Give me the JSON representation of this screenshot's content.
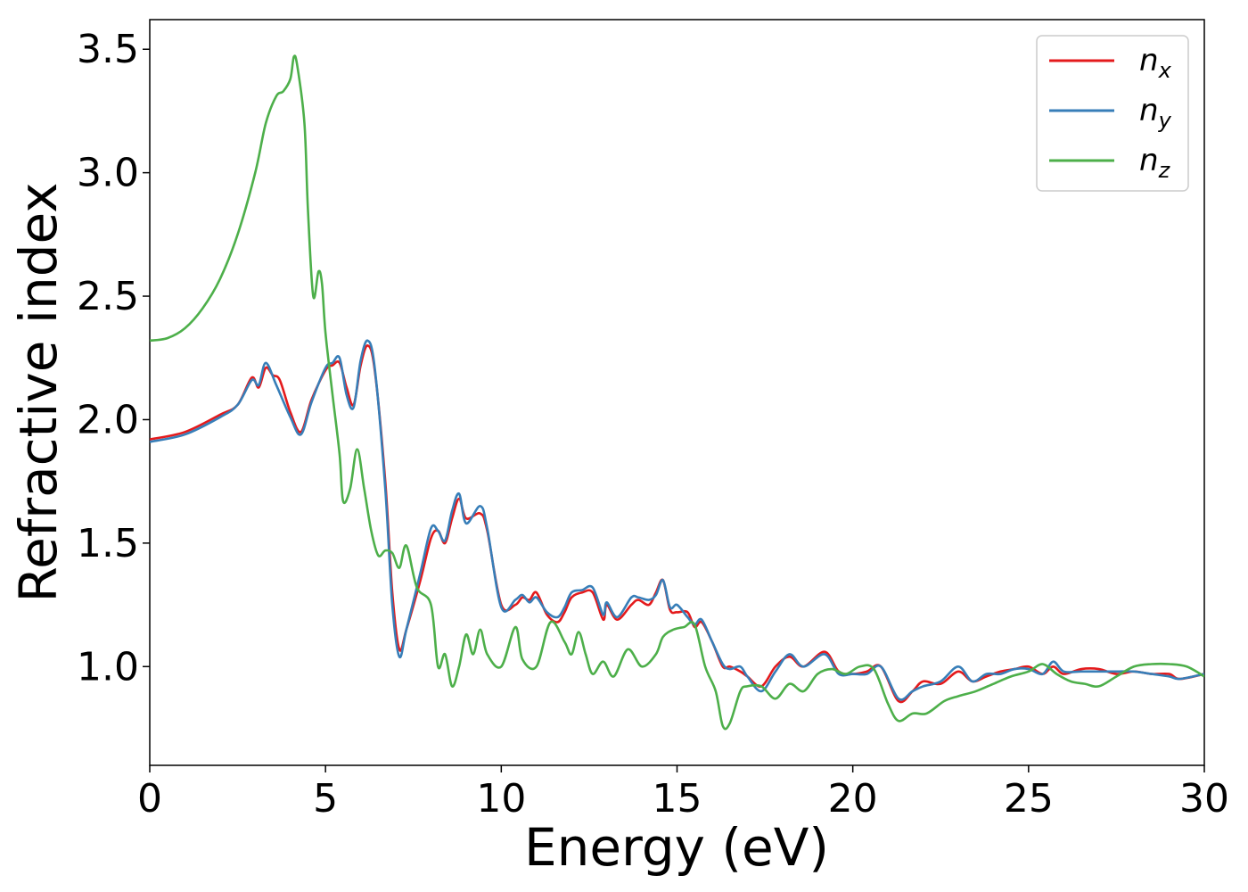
{
  "chart_data": {
    "type": "line",
    "title": "",
    "xlabel": "Energy (eV)",
    "ylabel": "Refractive index",
    "xlim": [
      0,
      30
    ],
    "ylim": [
      0.6,
      3.62
    ],
    "xticks": [
      0,
      5,
      10,
      15,
      20,
      25,
      30
    ],
    "xtick_labels": [
      "0",
      "5",
      "10",
      "15",
      "20",
      "25",
      "30"
    ],
    "yticks": [
      1.0,
      1.5,
      2.0,
      2.5,
      3.0,
      3.5
    ],
    "ytick_labels": [
      "1.0",
      "1.5",
      "2.0",
      "2.5",
      "3.0",
      "3.5"
    ],
    "grid": false,
    "legend_position": "top-right",
    "series": [
      {
        "name": "n",
        "subscript": "x",
        "color": "#e41a1c",
        "points": [
          [
            0,
            1.92
          ],
          [
            1,
            1.95
          ],
          [
            2,
            2.02
          ],
          [
            2.5,
            2.06
          ],
          [
            2.9,
            2.17
          ],
          [
            3.1,
            2.13
          ],
          [
            3.3,
            2.21
          ],
          [
            3.5,
            2.18
          ],
          [
            3.7,
            2.16
          ],
          [
            4.0,
            2.03
          ],
          [
            4.3,
            1.95
          ],
          [
            4.6,
            2.08
          ],
          [
            5.0,
            2.2
          ],
          [
            5.2,
            2.22
          ],
          [
            5.4,
            2.23
          ],
          [
            5.6,
            2.13
          ],
          [
            5.8,
            2.06
          ],
          [
            6.0,
            2.22
          ],
          [
            6.2,
            2.3
          ],
          [
            6.4,
            2.2
          ],
          [
            6.7,
            1.75
          ],
          [
            6.9,
            1.3
          ],
          [
            7.1,
            1.07
          ],
          [
            7.3,
            1.15
          ],
          [
            7.7,
            1.35
          ],
          [
            8.0,
            1.52
          ],
          [
            8.2,
            1.55
          ],
          [
            8.4,
            1.5
          ],
          [
            8.6,
            1.6
          ],
          [
            8.8,
            1.68
          ],
          [
            9.0,
            1.6
          ],
          [
            9.4,
            1.62
          ],
          [
            9.6,
            1.55
          ],
          [
            10.0,
            1.25
          ],
          [
            10.4,
            1.25
          ],
          [
            10.6,
            1.28
          ],
          [
            10.8,
            1.27
          ],
          [
            11.0,
            1.3
          ],
          [
            11.3,
            1.21
          ],
          [
            11.6,
            1.18
          ],
          [
            11.8,
            1.22
          ],
          [
            12.0,
            1.28
          ],
          [
            12.3,
            1.3
          ],
          [
            12.6,
            1.3
          ],
          [
            12.9,
            1.19
          ],
          [
            13.0,
            1.25
          ],
          [
            13.3,
            1.19
          ],
          [
            13.7,
            1.25
          ],
          [
            13.9,
            1.27
          ],
          [
            14.2,
            1.25
          ],
          [
            14.4,
            1.3
          ],
          [
            14.6,
            1.35
          ],
          [
            14.8,
            1.23
          ],
          [
            15.0,
            1.22
          ],
          [
            15.3,
            1.22
          ],
          [
            15.5,
            1.16
          ],
          [
            15.7,
            1.18
          ],
          [
            16.0,
            1.1
          ],
          [
            16.3,
            1.0
          ],
          [
            16.5,
            1.0
          ],
          [
            16.8,
            0.98
          ],
          [
            17.0,
            0.96
          ],
          [
            17.4,
            0.92
          ],
          [
            17.8,
            1.0
          ],
          [
            18.2,
            1.04
          ],
          [
            18.6,
            1.0
          ],
          [
            19.2,
            1.06
          ],
          [
            19.6,
            0.98
          ],
          [
            20.0,
            0.97
          ],
          [
            20.4,
            0.98
          ],
          [
            20.8,
            1.0
          ],
          [
            21.3,
            0.86
          ],
          [
            21.7,
            0.9
          ],
          [
            22.0,
            0.94
          ],
          [
            22.5,
            0.93
          ],
          [
            23.0,
            0.98
          ],
          [
            23.4,
            0.94
          ],
          [
            23.8,
            0.96
          ],
          [
            24.2,
            0.98
          ],
          [
            24.6,
            0.99
          ],
          [
            25.0,
            1.0
          ],
          [
            25.4,
            0.97
          ],
          [
            25.7,
            1.0
          ],
          [
            26.0,
            0.97
          ],
          [
            26.5,
            0.99
          ],
          [
            27.0,
            0.99
          ],
          [
            27.5,
            0.97
          ],
          [
            28.0,
            0.98
          ],
          [
            28.5,
            0.97
          ],
          [
            29.0,
            0.97
          ],
          [
            29.3,
            0.95
          ],
          [
            30.0,
            0.97
          ]
        ]
      },
      {
        "name": "n",
        "subscript": "y",
        "color": "#377eb8",
        "points": [
          [
            0,
            1.91
          ],
          [
            1,
            1.94
          ],
          [
            2,
            2.01
          ],
          [
            2.5,
            2.06
          ],
          [
            2.9,
            2.16
          ],
          [
            3.1,
            2.14
          ],
          [
            3.3,
            2.23
          ],
          [
            3.6,
            2.14
          ],
          [
            4.0,
            2.01
          ],
          [
            4.3,
            1.94
          ],
          [
            4.6,
            2.07
          ],
          [
            5.0,
            2.21
          ],
          [
            5.2,
            2.23
          ],
          [
            5.4,
            2.25
          ],
          [
            5.6,
            2.1
          ],
          [
            5.8,
            2.05
          ],
          [
            6.0,
            2.24
          ],
          [
            6.2,
            2.32
          ],
          [
            6.4,
            2.21
          ],
          [
            6.7,
            1.72
          ],
          [
            6.9,
            1.25
          ],
          [
            7.1,
            1.04
          ],
          [
            7.3,
            1.15
          ],
          [
            7.7,
            1.38
          ],
          [
            8.0,
            1.56
          ],
          [
            8.2,
            1.55
          ],
          [
            8.4,
            1.51
          ],
          [
            8.6,
            1.63
          ],
          [
            8.8,
            1.7
          ],
          [
            9.0,
            1.58
          ],
          [
            9.4,
            1.65
          ],
          [
            9.6,
            1.56
          ],
          [
            10.0,
            1.24
          ],
          [
            10.4,
            1.27
          ],
          [
            10.6,
            1.29
          ],
          [
            10.8,
            1.26
          ],
          [
            11.0,
            1.28
          ],
          [
            11.3,
            1.22
          ],
          [
            11.6,
            1.2
          ],
          [
            11.8,
            1.24
          ],
          [
            12.0,
            1.3
          ],
          [
            12.3,
            1.31
          ],
          [
            12.6,
            1.32
          ],
          [
            12.9,
            1.21
          ],
          [
            13.0,
            1.26
          ],
          [
            13.3,
            1.2
          ],
          [
            13.7,
            1.28
          ],
          [
            13.9,
            1.28
          ],
          [
            14.2,
            1.27
          ],
          [
            14.4,
            1.29
          ],
          [
            14.6,
            1.35
          ],
          [
            14.8,
            1.24
          ],
          [
            15.0,
            1.25
          ],
          [
            15.3,
            1.2
          ],
          [
            15.5,
            1.17
          ],
          [
            15.7,
            1.19
          ],
          [
            16.0,
            1.1
          ],
          [
            16.3,
            1.01
          ],
          [
            16.5,
            0.99
          ],
          [
            16.8,
            1.0
          ],
          [
            17.0,
            0.96
          ],
          [
            17.4,
            0.9
          ],
          [
            17.8,
            0.98
          ],
          [
            18.2,
            1.05
          ],
          [
            18.6,
            1.0
          ],
          [
            19.2,
            1.05
          ],
          [
            19.6,
            0.97
          ],
          [
            20.0,
            0.97
          ],
          [
            20.4,
            0.97
          ],
          [
            20.8,
            1.0
          ],
          [
            21.3,
            0.87
          ],
          [
            21.7,
            0.9
          ],
          [
            22.0,
            0.92
          ],
          [
            22.5,
            0.94
          ],
          [
            23.0,
            1.0
          ],
          [
            23.4,
            0.94
          ],
          [
            23.8,
            0.97
          ],
          [
            24.2,
            0.97
          ],
          [
            24.6,
            0.99
          ],
          [
            25.0,
            0.99
          ],
          [
            25.4,
            0.97
          ],
          [
            25.7,
            1.02
          ],
          [
            26.0,
            0.98
          ],
          [
            26.5,
            0.98
          ],
          [
            27.0,
            0.98
          ],
          [
            27.5,
            0.98
          ],
          [
            28.0,
            0.98
          ],
          [
            28.5,
            0.97
          ],
          [
            29.0,
            0.96
          ],
          [
            29.3,
            0.95
          ],
          [
            30.0,
            0.97
          ]
        ]
      },
      {
        "name": "n",
        "subscript": "z",
        "color": "#4daf4a",
        "points": [
          [
            0,
            2.32
          ],
          [
            0.5,
            2.33
          ],
          [
            1.0,
            2.37
          ],
          [
            1.5,
            2.45
          ],
          [
            2.0,
            2.57
          ],
          [
            2.5,
            2.75
          ],
          [
            3.0,
            3.0
          ],
          [
            3.3,
            3.2
          ],
          [
            3.6,
            3.31
          ],
          [
            3.8,
            3.33
          ],
          [
            4.0,
            3.38
          ],
          [
            4.1,
            3.47
          ],
          [
            4.2,
            3.43
          ],
          [
            4.4,
            3.2
          ],
          [
            4.5,
            2.85
          ],
          [
            4.65,
            2.5
          ],
          [
            4.8,
            2.6
          ],
          [
            4.9,
            2.55
          ],
          [
            5.0,
            2.35
          ],
          [
            5.2,
            2.1
          ],
          [
            5.4,
            1.86
          ],
          [
            5.5,
            1.67
          ],
          [
            5.7,
            1.72
          ],
          [
            5.9,
            1.88
          ],
          [
            6.1,
            1.72
          ],
          [
            6.3,
            1.55
          ],
          [
            6.5,
            1.45
          ],
          [
            6.7,
            1.47
          ],
          [
            6.9,
            1.46
          ],
          [
            7.1,
            1.4
          ],
          [
            7.3,
            1.49
          ],
          [
            7.6,
            1.32
          ],
          [
            8.0,
            1.25
          ],
          [
            8.2,
            1.0
          ],
          [
            8.4,
            1.05
          ],
          [
            8.6,
            0.92
          ],
          [
            8.8,
            1.0
          ],
          [
            9.0,
            1.13
          ],
          [
            9.2,
            1.05
          ],
          [
            9.4,
            1.15
          ],
          [
            9.6,
            1.05
          ],
          [
            10.0,
            1.0
          ],
          [
            10.4,
            1.16
          ],
          [
            10.6,
            1.03
          ],
          [
            11.0,
            1.0
          ],
          [
            11.4,
            1.18
          ],
          [
            11.8,
            1.1
          ],
          [
            12.0,
            1.05
          ],
          [
            12.2,
            1.14
          ],
          [
            12.4,
            1.05
          ],
          [
            12.6,
            0.97
          ],
          [
            12.9,
            1.02
          ],
          [
            13.2,
            0.96
          ],
          [
            13.6,
            1.07
          ],
          [
            14.0,
            1.0
          ],
          [
            14.4,
            1.05
          ],
          [
            14.6,
            1.12
          ],
          [
            14.9,
            1.15
          ],
          [
            15.2,
            1.16
          ],
          [
            15.5,
            1.17
          ],
          [
            15.8,
            1.0
          ],
          [
            16.1,
            0.9
          ],
          [
            16.3,
            0.76
          ],
          [
            16.5,
            0.77
          ],
          [
            16.8,
            0.9
          ],
          [
            17.0,
            0.92
          ],
          [
            17.4,
            0.92
          ],
          [
            17.8,
            0.87
          ],
          [
            18.2,
            0.93
          ],
          [
            18.6,
            0.9
          ],
          [
            19.0,
            0.97
          ],
          [
            19.4,
            0.99
          ],
          [
            19.8,
            0.97
          ],
          [
            20.2,
            1.0
          ],
          [
            20.6,
            0.99
          ],
          [
            21.0,
            0.85
          ],
          [
            21.3,
            0.78
          ],
          [
            21.7,
            0.81
          ],
          [
            22.1,
            0.81
          ],
          [
            22.6,
            0.86
          ],
          [
            23.0,
            0.88
          ],
          [
            23.5,
            0.9
          ],
          [
            24.0,
            0.93
          ],
          [
            24.5,
            0.96
          ],
          [
            25.0,
            0.98
          ],
          [
            25.4,
            1.01
          ],
          [
            25.8,
            0.97
          ],
          [
            26.2,
            0.94
          ],
          [
            26.6,
            0.93
          ],
          [
            27.0,
            0.92
          ],
          [
            27.5,
            0.96
          ],
          [
            28.0,
            1.0
          ],
          [
            28.5,
            1.01
          ],
          [
            29.0,
            1.01
          ],
          [
            29.5,
            1.0
          ],
          [
            30.0,
            0.96
          ]
        ]
      }
    ]
  }
}
